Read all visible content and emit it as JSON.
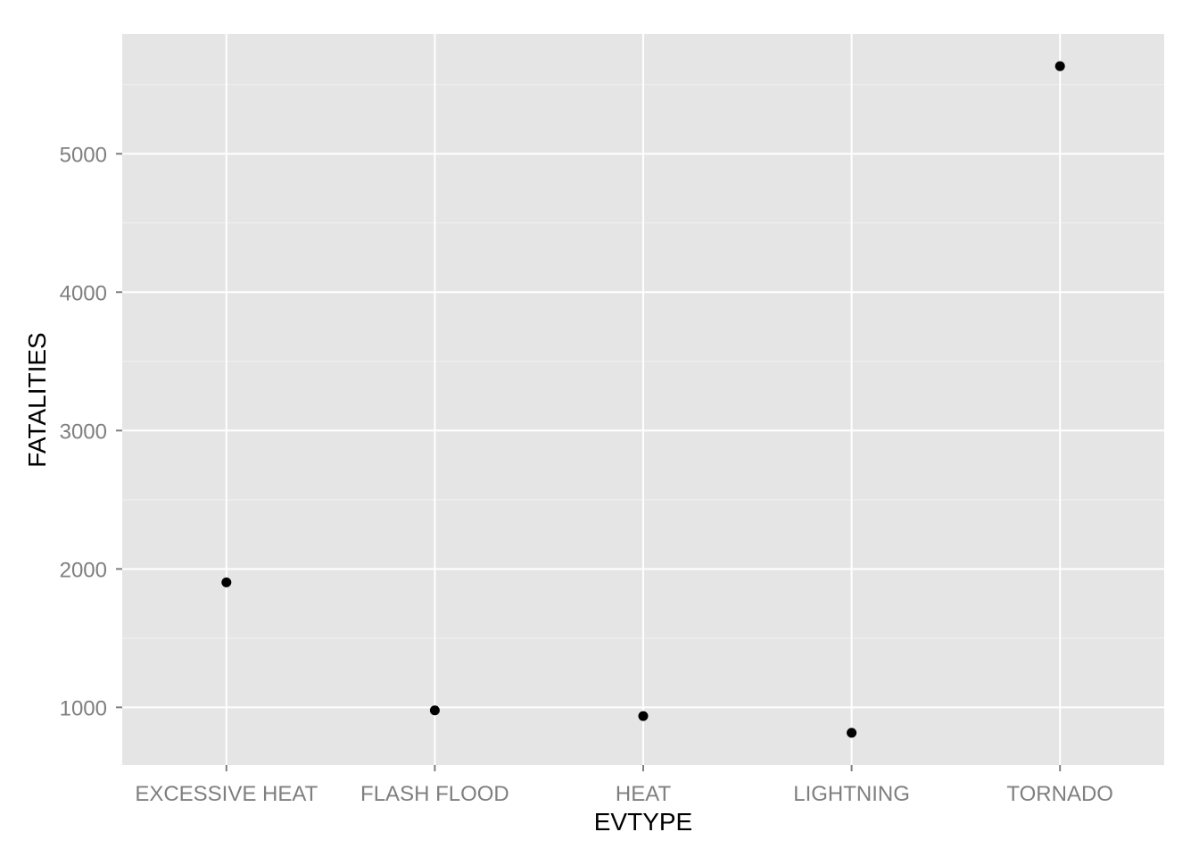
{
  "chart_data": {
    "type": "scatter",
    "categories": [
      "EXCESSIVE HEAT",
      "FLASH FLOOD",
      "HEAT",
      "LIGHTNING",
      "TORNADO"
    ],
    "values": [
      1903,
      978,
      937,
      816,
      5633
    ],
    "xlabel": "EVTYPE",
    "ylabel": "FATALITIES",
    "ylim": [
      583,
      5866
    ],
    "yticks": [
      1000,
      2000,
      3000,
      4000,
      5000
    ],
    "grid": true,
    "legend": "none",
    "colors": {
      "panel": "#e5e5e5",
      "grid_major": "#ffffff",
      "grid_minor": "#f2f2f2",
      "point": "#000000",
      "tick_label": "#7f7f7f"
    }
  }
}
